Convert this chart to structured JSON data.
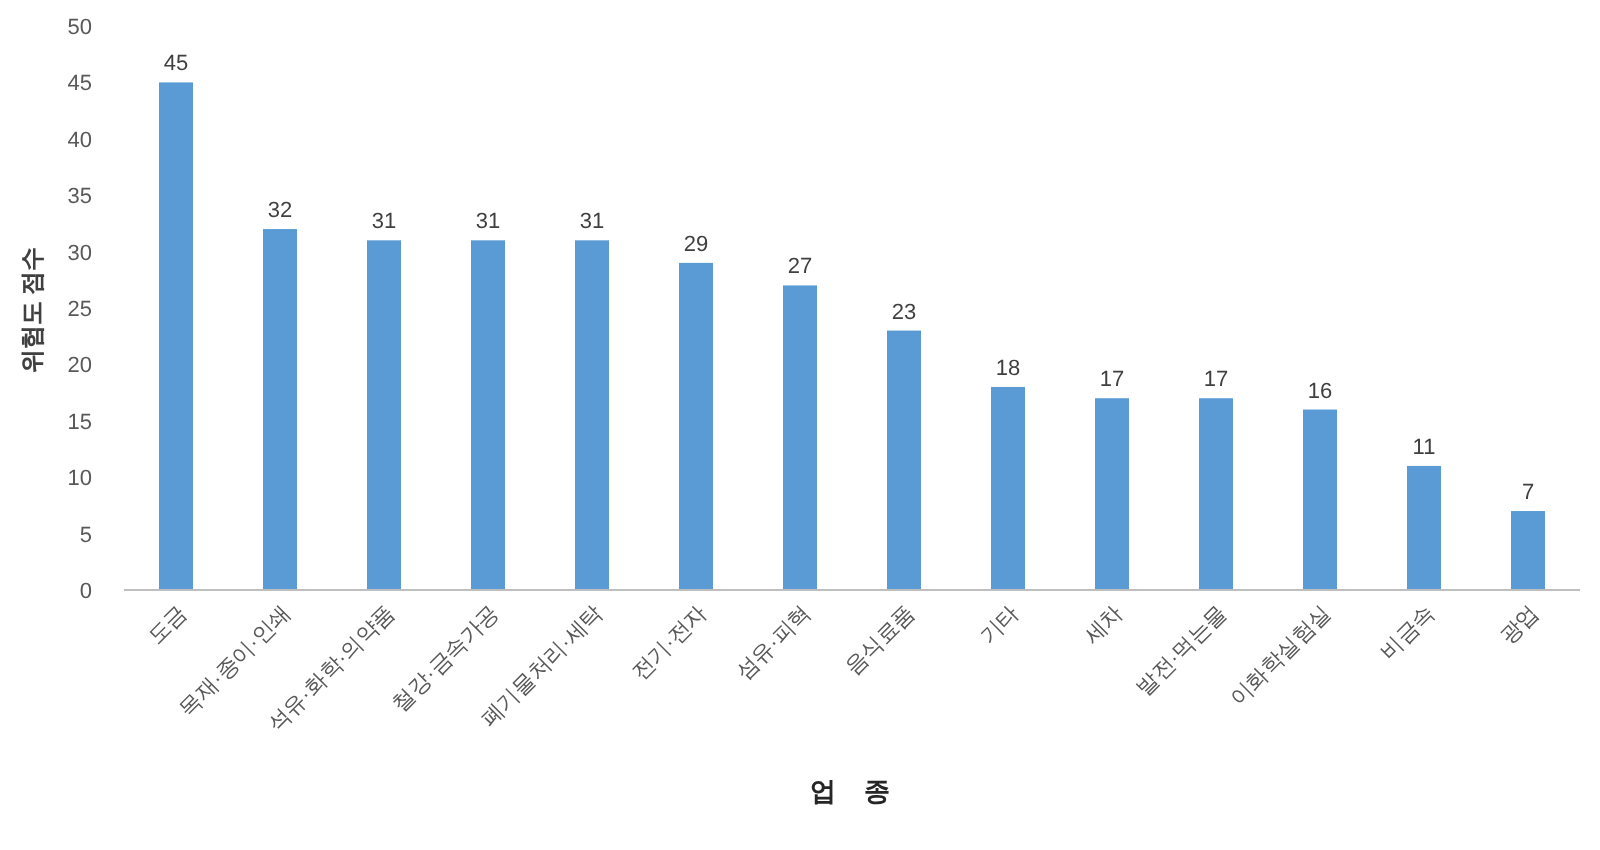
{
  "chart_data": {
    "type": "bar",
    "xlabel": "업    종",
    "ylabel": "위험도 점수",
    "categories": [
      "도금",
      "목재·종이·인쇄",
      "석유·화학·의약품",
      "철강·금속가공",
      "폐기물처리·세탁",
      "전기·전자",
      "섬유·피혁",
      "음식료품",
      "기타",
      "세차",
      "발전·먹는물",
      "이화학실험실",
      "비금속",
      "광업"
    ],
    "values": [
      45,
      32,
      31,
      31,
      31,
      29,
      27,
      23,
      18,
      17,
      17,
      16,
      11,
      7
    ],
    "color": "#5b9bd5",
    "ylim": [
      0,
      50
    ],
    "yticks": [
      0,
      5,
      10,
      15,
      20,
      25,
      30,
      35,
      40,
      45,
      50
    ],
    "data_labels": true,
    "grid": false
  }
}
